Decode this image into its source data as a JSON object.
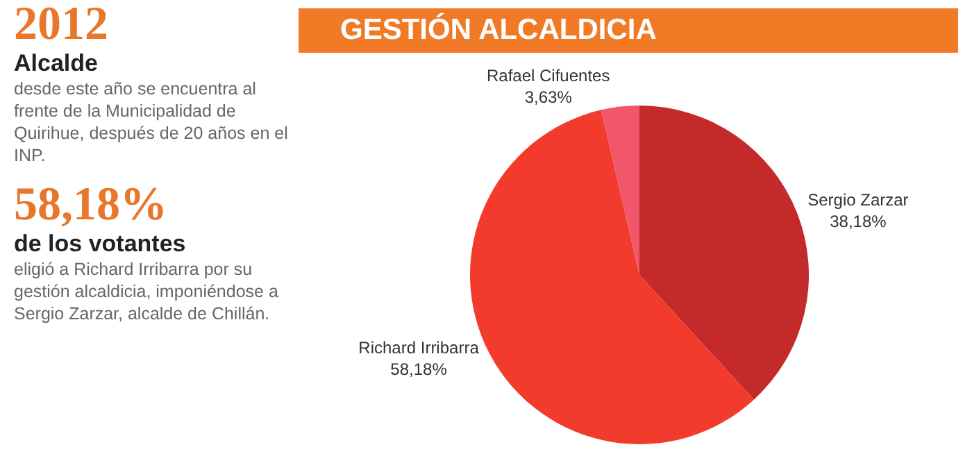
{
  "chart_data": {
    "type": "pie",
    "title": "GESTIÓN ALCALDICIA",
    "categories": [
      "Sergio Zarzar",
      "Richard Irribarra",
      "Rafael Cifuentes"
    ],
    "values": [
      38.18,
      58.18,
      3.63
    ],
    "value_labels": [
      "38,18%",
      "58,18%",
      "3,63%"
    ],
    "colors": [
      "#c42a2a",
      "#f23b2c",
      "#f2566b"
    ],
    "legend": false,
    "annotations": [
      "2012",
      "Alcalde",
      "desde este año se encuentra al frente de la Municipalidad de Quirihue, después de 20 años en el INP.",
      "58,18%",
      "de los votantes",
      "eligió a Richard Irribarra por su gestión alcaldicia, imponiéndose a Sergio Zarzar, alcalde de Chillán."
    ]
  }
}
